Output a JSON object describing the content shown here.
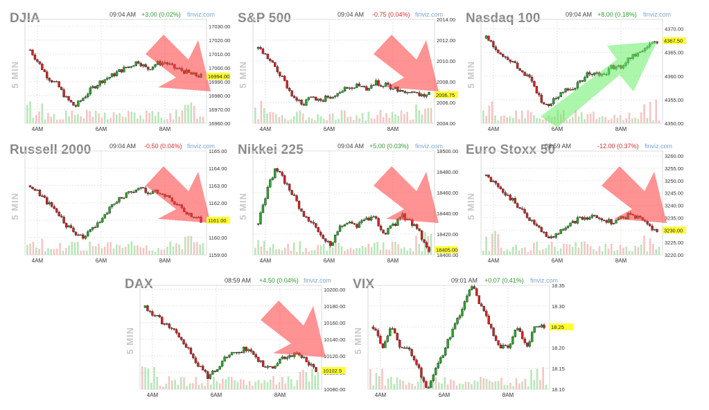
{
  "source": "finviz.com",
  "interval": "5 MIN",
  "colors": {
    "up": "#2aa52a",
    "down": "#d52020",
    "arrow_up": "#66ee66",
    "arrow_down": "#ff3b3b",
    "vol_up": "#b8e6b8",
    "vol_down": "#f6c4c4",
    "price_tag": "#ffff33"
  },
  "chart_data": [
    {
      "type": "candlestick",
      "title": "DJIA",
      "time": "09:04 AM",
      "change": "+3.00 (0.02%)",
      "change_dir": "up",
      "price": 16994.0,
      "price_label": "16994.00",
      "ylim": [
        16960,
        17035
      ],
      "yticks": [
        "17030.00",
        "17020.00",
        "17010.00",
        "17000.00",
        "16990.00",
        "16980.00",
        "16970.00",
        "16960.00"
      ],
      "ytick_values": [
        17030,
        17020,
        17010,
        17000,
        16990,
        16980,
        16970,
        16960
      ],
      "xticks": [
        "4AM",
        "6AM",
        "8AM"
      ],
      "trend": "down",
      "series": [
        17013,
        17003,
        16993,
        16988,
        16978,
        16972,
        16979,
        16986,
        16991,
        16994,
        16998,
        17001,
        17005,
        16999,
        17003,
        17004,
        17000,
        16998,
        16995,
        16994
      ]
    },
    {
      "type": "candlestick",
      "title": "S&P 500",
      "time": "09:04 AM",
      "change": "-0.75 (0.04%)",
      "change_dir": "down",
      "price": 2006.75,
      "price_label": "2006.75",
      "ylim": [
        2004,
        2014
      ],
      "yticks": [
        "2014.00",
        "2012.00",
        "2010.00",
        "2008.00",
        "2006.00",
        "2004.00"
      ],
      "ytick_values": [
        2014,
        2012,
        2010,
        2008,
        2006,
        2004
      ],
      "xticks": [
        "4AM",
        "6AM",
        "8AM"
      ],
      "trend": "down",
      "series": [
        2011.2,
        2010.3,
        2009.2,
        2007.9,
        2006.4,
        2005.9,
        2006.5,
        2006.2,
        2006.6,
        2007.1,
        2007.4,
        2007.6,
        2007.3,
        2007.9,
        2007.7,
        2007.4,
        2007.2,
        2006.9,
        2006.8,
        2006.75
      ]
    },
    {
      "type": "candlestick",
      "title": "Nasdaq 100",
      "time": "09:04 AM",
      "change": "+8.00 (0.18%)",
      "change_dir": "up",
      "price": 4367.5,
      "price_label": "4367.50",
      "ylim": [
        4350,
        4372
      ],
      "yticks": [
        "4370.00",
        "4365.00",
        "4360.00",
        "4355.00",
        "4350.00"
      ],
      "ytick_values": [
        4370,
        4365,
        4360,
        4355,
        4350
      ],
      "xticks": [
        "4AM",
        "6AM",
        "8AM"
      ],
      "trend": "up",
      "series": [
        4368,
        4366,
        4364,
        4363,
        4361,
        4359,
        4355,
        4354,
        4356,
        4357,
        4358,
        4360,
        4361,
        4360,
        4362,
        4362,
        4364,
        4365,
        4366,
        4367.5
      ]
    },
    {
      "type": "candlestick",
      "title": "Russell 2000",
      "time": "09:04 AM",
      "change": "-0.50 (0.04%)",
      "change_dir": "down",
      "price": 1161.0,
      "price_label": "1161.00",
      "ylim": [
        1159,
        1165
      ],
      "yticks": [
        "1165.00",
        "1164.00",
        "1163.00",
        "1162.00",
        "1161.00",
        "1160.00",
        "1159.00"
      ],
      "ytick_values": [
        1165,
        1164,
        1163,
        1162,
        1161,
        1160,
        1159
      ],
      "xticks": [
        "4AM",
        "6AM",
        "8AM"
      ],
      "trend": "down",
      "series": [
        1163.0,
        1162.6,
        1162.0,
        1161.5,
        1160.7,
        1160.2,
        1160.0,
        1160.5,
        1161.2,
        1161.8,
        1162.3,
        1162.6,
        1162.9,
        1162.6,
        1162.7,
        1162.5,
        1162.1,
        1161.6,
        1161.2,
        1161.0
      ]
    },
    {
      "type": "candlestick",
      "title": "Nikkei 225",
      "time": "09:04 AM",
      "change": "+5.00 (0.03%)",
      "change_dir": "up",
      "price": 18405.0,
      "price_label": "18405.00",
      "ylim": [
        18400,
        18500
      ],
      "yticks": [
        "18500.00",
        "18480.00",
        "18460.00",
        "18440.00",
        "18420.00",
        "18400.00"
      ],
      "ytick_values": [
        18500,
        18480,
        18460,
        18440,
        18420,
        18400
      ],
      "xticks": [
        "4AM",
        "6AM",
        "8AM"
      ],
      "trend": "down",
      "series": [
        18430,
        18462,
        18485,
        18470,
        18455,
        18440,
        18430,
        18418,
        18410,
        18425,
        18432,
        18428,
        18436,
        18435,
        18420,
        18428,
        18438,
        18432,
        18420,
        18405
      ]
    },
    {
      "type": "candlestick",
      "title": "Euro Stoxx 50",
      "time": "08:59 AM",
      "change": "-12.00 (0.37%)",
      "change_dir": "down",
      "price": 3230.0,
      "price_label": "3230.00",
      "ylim": [
        3220,
        3262
      ],
      "yticks": [
        "3260.00",
        "3255.00",
        "3250.00",
        "3245.00",
        "3240.00",
        "3235.00",
        "3230.00",
        "3225.00",
        "3220.00"
      ],
      "ytick_values": [
        3260,
        3255,
        3250,
        3245,
        3240,
        3235,
        3230,
        3225,
        3220
      ],
      "xticks": [
        "4AM",
        "6AM",
        "8AM"
      ],
      "trend": "down",
      "series": [
        3252,
        3249,
        3245,
        3242,
        3238,
        3234,
        3230,
        3227,
        3229,
        3232,
        3234,
        3235,
        3236,
        3234,
        3233,
        3235,
        3236,
        3235,
        3232,
        3230
      ]
    },
    {
      "type": "candlestick",
      "title": "DAX",
      "time": "08:59 AM",
      "change": "+4.50 (0.04%)",
      "change_dir": "up",
      "price": 10102.5,
      "price_label": "10102.5",
      "ylim": [
        10080,
        10205
      ],
      "yticks": [
        "10200.00",
        "10180.00",
        "10160.00",
        "10140.00",
        "10120.00",
        "10100.00",
        "10080.00"
      ],
      "ytick_values": [
        10200,
        10180,
        10160,
        10140,
        10120,
        10100,
        10080
      ],
      "xticks": [
        "4AM",
        "6AM",
        "8AM"
      ],
      "trend": "down",
      "series": [
        10178,
        10170,
        10160,
        10152,
        10140,
        10125,
        10108,
        10095,
        10105,
        10118,
        10124,
        10128,
        10122,
        10110,
        10104,
        10116,
        10120,
        10122,
        10114,
        10102.5
      ]
    },
    {
      "type": "candlestick",
      "title": "VIX",
      "time": "09:01 AM",
      "change": "+0.07 (0.41%)",
      "change_dir": "up",
      "price": 18.25,
      "price_label": "18.25",
      "ylim": [
        18.1,
        18.35
      ],
      "yticks": [
        "18.35",
        "18.30",
        "18.25",
        "18.20",
        "18.15",
        "18.10"
      ],
      "ytick_values": [
        18.35,
        18.3,
        18.25,
        18.2,
        18.15,
        18.1
      ],
      "xticks": [
        "4AM",
        "6AM",
        "8AM"
      ],
      "trend": "none",
      "series": [
        18.25,
        18.2,
        18.25,
        18.2,
        18.2,
        18.15,
        18.1,
        18.15,
        18.2,
        18.25,
        18.3,
        18.35,
        18.3,
        18.25,
        18.2,
        18.2,
        18.25,
        18.2,
        18.25,
        18.25
      ]
    }
  ]
}
